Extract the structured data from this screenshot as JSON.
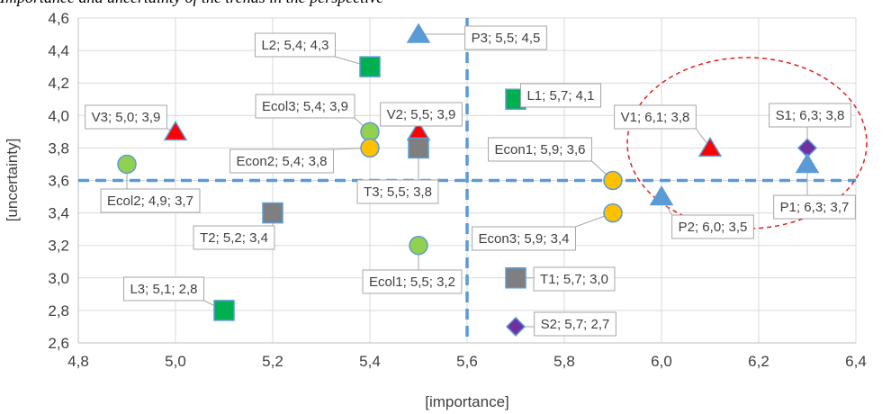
{
  "page": {
    "title": "Importance and uncertainty of the trends in the perspective"
  },
  "chart_data": {
    "type": "scatter",
    "title": "",
    "xlabel": "[importance]",
    "ylabel": "[uncertainty]",
    "xlim": [
      4.8,
      6.4
    ],
    "ylim": [
      2.6,
      4.6
    ],
    "x_ticks": [
      "4,8",
      "5,0",
      "5,2",
      "5,4",
      "5,6",
      "5,8",
      "6,0",
      "6,2",
      "6,4"
    ],
    "y_ticks": [
      "2,6",
      "2,8",
      "3,0",
      "3,2",
      "3,4",
      "3,6",
      "3,8",
      "4,0",
      "4,2",
      "4,4",
      "4,6"
    ],
    "grid": true,
    "legend": "none",
    "reference_lines": {
      "x": 5.6,
      "y": 3.6,
      "color": "#5b9bd5",
      "style": "dashed"
    },
    "highlight": {
      "type": "ellipse",
      "color": "#e02020",
      "style": "dashed",
      "encloses": [
        "V1",
        "S1",
        "P1",
        "P2"
      ]
    },
    "points": [
      {
        "id": "P3",
        "x": 5.5,
        "y": 4.5,
        "label": "P3; 5,5; 4,5",
        "shape": "triangle",
        "color": "#5b9bd5"
      },
      {
        "id": "L2",
        "x": 5.4,
        "y": 4.3,
        "label": "L2; 5,4; 4,3",
        "shape": "square",
        "color": "#00b050"
      },
      {
        "id": "L1",
        "x": 5.7,
        "y": 4.1,
        "label": "L1; 5,7; 4,1",
        "shape": "square",
        "color": "#00b050"
      },
      {
        "id": "V3",
        "x": 5.0,
        "y": 3.9,
        "label": "V3; 5,0; 3,9",
        "shape": "triangle",
        "color": "#ff0000"
      },
      {
        "id": "Ecol3",
        "x": 5.4,
        "y": 3.9,
        "label": "Ecol3; 5,4; 3,9",
        "shape": "circle",
        "color": "#92d050"
      },
      {
        "id": "V2",
        "x": 5.5,
        "y": 3.9,
        "label": "V2; 5,5; 3,9",
        "shape": "triangle",
        "color": "#ff0000"
      },
      {
        "id": "V1",
        "x": 6.1,
        "y": 3.8,
        "label": "V1; 6,1; 3,8",
        "shape": "triangle",
        "color": "#ff0000"
      },
      {
        "id": "S1",
        "x": 6.3,
        "y": 3.8,
        "label": "S1; 6,3; 3,8",
        "shape": "diamond",
        "color": "#7030a0"
      },
      {
        "id": "Econ2",
        "x": 5.4,
        "y": 3.8,
        "label": "Econ2; 5,4; 3,8",
        "shape": "circle",
        "color": "#ffc000"
      },
      {
        "id": "T3",
        "x": 5.5,
        "y": 3.8,
        "label": "T3; 5,5; 3,8",
        "shape": "square",
        "color": "#7f7f7f"
      },
      {
        "id": "Econ1",
        "x": 5.9,
        "y": 3.6,
        "label": "Econ1; 5,9; 3,6",
        "shape": "circle",
        "color": "#ffc000"
      },
      {
        "id": "Ecol2",
        "x": 4.9,
        "y": 3.7,
        "label": "Ecol2; 4,9; 3,7",
        "shape": "circle",
        "color": "#92d050"
      },
      {
        "id": "P1",
        "x": 6.3,
        "y": 3.7,
        "label": "P1; 6,3; 3,7",
        "shape": "triangle",
        "color": "#5b9bd5"
      },
      {
        "id": "P2",
        "x": 6.0,
        "y": 3.5,
        "label": "P2; 6,0; 3,5",
        "shape": "triangle",
        "color": "#5b9bd5"
      },
      {
        "id": "T2",
        "x": 5.2,
        "y": 3.4,
        "label": "T2; 5,2; 3,4",
        "shape": "square",
        "color": "#7f7f7f"
      },
      {
        "id": "Econ3",
        "x": 5.9,
        "y": 3.4,
        "label": "Econ3; 5,9; 3,4",
        "shape": "circle",
        "color": "#ffc000"
      },
      {
        "id": "Ecol1",
        "x": 5.5,
        "y": 3.2,
        "label": "Ecol1; 5,5; 3,2",
        "shape": "circle",
        "color": "#92d050"
      },
      {
        "id": "T1",
        "x": 5.7,
        "y": 3.0,
        "label": "T1; 5,7; 3,0",
        "shape": "square",
        "color": "#7f7f7f"
      },
      {
        "id": "L3",
        "x": 5.1,
        "y": 2.8,
        "label": "L3; 5,1; 2,8",
        "shape": "square",
        "color": "#00b050"
      },
      {
        "id": "S2",
        "x": 5.7,
        "y": 2.7,
        "label": "S2; 5,7; 2,7",
        "shape": "diamond",
        "color": "#7030a0"
      }
    ]
  }
}
